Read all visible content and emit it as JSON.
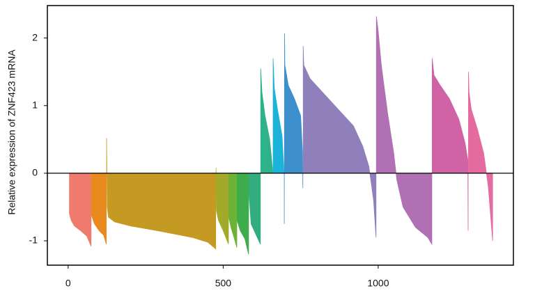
{
  "chart_data": {
    "type": "area",
    "y_label": "Relative expression of ZNF423 mRNA",
    "xlim": [
      -67,
      1436
    ],
    "ylim": [
      -1.36,
      2.48
    ],
    "xticks": [
      0,
      500,
      1000
    ],
    "yticks": [
      -1,
      0,
      1,
      2
    ],
    "series": [
      {
        "color": "#ee7b6e",
        "x": [
          4,
          10,
          20,
          40,
          60,
          74
        ],
        "values": [
          -0.6,
          -0.7,
          -0.78,
          -0.85,
          -0.93,
          -1.08
        ]
      },
      {
        "color": "#e88a1d",
        "x": [
          75,
          85,
          100,
          115,
          123
        ],
        "values": [
          -0.62,
          -0.75,
          -0.85,
          -0.92,
          -1.05
        ]
      },
      {
        "color": "#c49a22",
        "x": [
          124,
          126,
          130,
          150,
          200,
          300,
          400,
          450,
          476
        ],
        "values": [
          0.52,
          -0.5,
          -0.65,
          -0.72,
          -0.78,
          -0.86,
          -0.95,
          -1.02,
          -1.12
        ]
      },
      {
        "color": "#a3aa2a",
        "x": [
          477,
          478,
          485,
          500,
          517
        ],
        "values": [
          0.08,
          -0.55,
          -0.7,
          -0.85,
          -1.05
        ]
      },
      {
        "color": "#6db236",
        "x": [
          518,
          525,
          535,
          544
        ],
        "values": [
          -0.65,
          -0.8,
          -0.95,
          -1.1
        ]
      },
      {
        "color": "#3fac4c",
        "x": [
          545,
          555,
          570,
          582
        ],
        "values": [
          -0.7,
          -0.85,
          -0.97,
          -1.2
        ]
      },
      {
        "color": "#33ad7f",
        "x": [
          583,
          590,
          605,
          620
        ],
        "values": [
          -0.3,
          -0.75,
          -0.9,
          -1.05
        ]
      },
      {
        "color": "#2db289",
        "x": [
          621,
          625,
          635,
          650,
          660
        ],
        "values": [
          1.55,
          1.2,
          0.85,
          0.5,
          0.02
        ]
      },
      {
        "color": "#1bb3d8",
        "x": [
          661,
          665,
          675,
          690,
          696
        ],
        "values": [
          1.7,
          1.25,
          0.95,
          0.55,
          0.02
        ]
      },
      {
        "color": "#3d90cc",
        "x": [
          697,
          698,
          699,
          710,
          730,
          750,
          756,
          757
        ],
        "values": [
          -0.75,
          2.07,
          1.6,
          1.3,
          1.1,
          0.85,
          0.3,
          -0.22
        ]
      },
      {
        "color": "#8f80bb",
        "x": [
          758,
          760,
          780,
          820,
          870,
          920,
          950,
          970,
          985,
          993
        ],
        "values": [
          1.88,
          1.6,
          1.4,
          1.2,
          0.95,
          0.7,
          0.4,
          0.1,
          -0.4,
          -0.95
        ]
      },
      {
        "color": "#b170b3",
        "x": [
          994,
          1000,
          1010,
          1030,
          1050,
          1060,
          1080,
          1120,
          1160,
          1173
        ],
        "values": [
          2.32,
          2.1,
          1.6,
          0.9,
          0.3,
          -0.1,
          -0.5,
          -0.8,
          -0.95,
          -1.05
        ]
      },
      {
        "color": "#d063a6",
        "x": [
          1174,
          1180,
          1200,
          1230,
          1260,
          1280,
          1289,
          1290
        ],
        "values": [
          1.7,
          1.45,
          1.3,
          1.1,
          0.8,
          0.45,
          0.2,
          -0.85
        ]
      },
      {
        "color": "#e56aa0",
        "x": [
          1291,
          1293,
          1300,
          1320,
          1340,
          1355,
          1369
        ],
        "values": [
          1.5,
          1.2,
          0.95,
          0.65,
          0.3,
          -0.2,
          -1.0
        ]
      }
    ]
  }
}
